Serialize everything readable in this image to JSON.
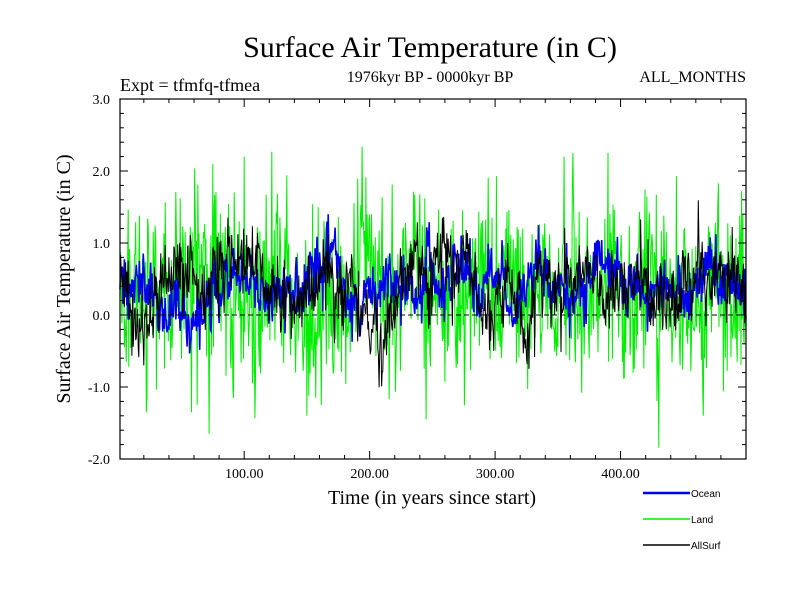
{
  "chart_data": {
    "type": "line",
    "title": "Surface Air Temperature (in C)",
    "subtitle": "1976kyr BP - 0000kyr BP",
    "left_label": "Expt = tfmfq-tfmea",
    "right_label": "ALL_MONTHS",
    "xlabel": "Time (in years since start)",
    "ylabel": "Surface Air Temperature (in C)",
    "xlim": [
      1,
      500
    ],
    "ylim": [
      -2.0,
      3.0
    ],
    "x_ticks": [
      100,
      200,
      300,
      400
    ],
    "x_tick_labels": [
      "100.00",
      "200.00",
      "300.00",
      "400.00"
    ],
    "y_ticks": [
      -2.0,
      -1.0,
      0.0,
      1.0,
      2.0,
      3.0
    ],
    "y_tick_labels": [
      "-2.0",
      "-1.0",
      "0.0",
      "1.0",
      "2.0",
      "3.0"
    ],
    "zero_line": 0.0,
    "legend_position": "bottom-right",
    "series": [
      {
        "name": "Land",
        "color": "#00ee00",
        "x": [
          1,
          500
        ],
        "mean": 0.38,
        "spread": 0.62,
        "peaks": [
          {
            "x": 100,
            "y": 2.2
          },
          {
            "x": 72,
            "y": -1.65
          },
          {
            "x": 245,
            "y": -1.45
          },
          {
            "x": 390,
            "y": 2.25
          },
          {
            "x": 355,
            "y": 2.2
          },
          {
            "x": 150,
            "y": -1.4
          },
          {
            "x": 58,
            "y": -1.35
          }
        ]
      },
      {
        "name": "Ocean",
        "color": "#0000ee",
        "x": [
          1,
          500
        ],
        "mean": 0.35,
        "spread": 0.18,
        "peaks": [
          {
            "x": 357,
            "y": 1.0
          },
          {
            "x": 225,
            "y": -0.15
          }
        ]
      },
      {
        "name": "AllSurf",
        "color": "#000000",
        "x": [
          1,
          500
        ],
        "mean": 0.36,
        "spread": 0.25,
        "peaks": []
      }
    ]
  }
}
